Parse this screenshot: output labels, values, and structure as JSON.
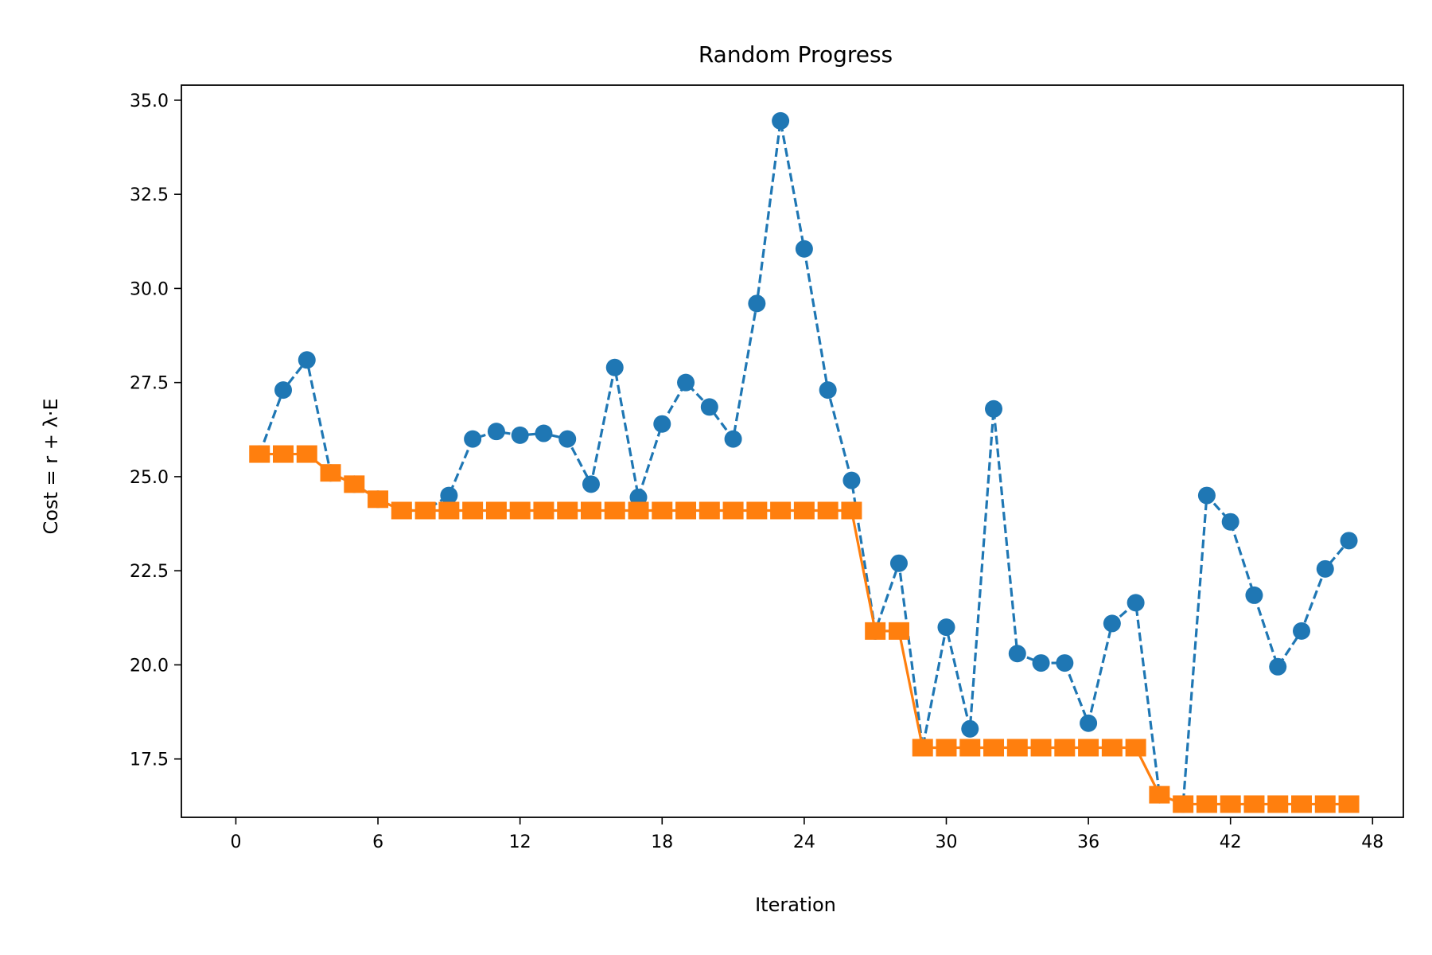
{
  "chart_data": {
    "type": "line",
    "title": "Random Progress",
    "xlabel": "Iteration",
    "ylabel": "Cost = r + λ·E",
    "xlim": [
      -2.3,
      49.3
    ],
    "ylim": [
      15.95,
      35.4
    ],
    "xticks": [
      0,
      6,
      12,
      18,
      24,
      30,
      36,
      42,
      48
    ],
    "yticks": [
      17.5,
      20.0,
      22.5,
      25.0,
      27.5,
      30.0,
      32.5,
      35.0
    ],
    "xtick_labels": [
      "0",
      "6",
      "12",
      "18",
      "24",
      "30",
      "36",
      "42",
      "48"
    ],
    "ytick_labels": [
      "17.5",
      "20.0",
      "22.5",
      "25.0",
      "27.5",
      "30.0",
      "32.5",
      "35.0"
    ],
    "grid": false,
    "series": [
      {
        "color": "#1f77b4",
        "line_style": "dashed",
        "marker": "circle",
        "x": [
          1,
          2,
          3,
          4,
          5,
          6,
          7,
          8,
          9,
          10,
          11,
          12,
          13,
          14,
          15,
          16,
          17,
          18,
          19,
          20,
          21,
          22,
          23,
          24,
          25,
          26,
          27,
          28,
          29,
          30,
          31,
          32,
          33,
          34,
          35,
          36,
          37,
          38,
          39,
          40,
          41,
          42,
          43,
          44,
          45,
          46,
          47
        ],
        "y": [
          25.6,
          27.3,
          28.1,
          25.1,
          24.8,
          24.4,
          24.1,
          24.1,
          24.5,
          26.0,
          26.2,
          26.1,
          26.15,
          26.0,
          24.8,
          27.9,
          24.45,
          26.4,
          27.5,
          26.85,
          26.0,
          29.6,
          34.45,
          31.05,
          27.3,
          24.9,
          20.9,
          22.7,
          17.8,
          21.0,
          18.3,
          26.8,
          20.3,
          20.05,
          20.05,
          18.45,
          21.1,
          21.65,
          16.55,
          16.3,
          24.5,
          23.8,
          21.85,
          19.95,
          20.9,
          22.55,
          23.3
        ]
      },
      {
        "color": "#ff7f0e",
        "line_style": "solid",
        "marker": "square",
        "x": [
          1,
          2,
          3,
          4,
          5,
          6,
          7,
          8,
          9,
          10,
          11,
          12,
          13,
          14,
          15,
          16,
          17,
          18,
          19,
          20,
          21,
          22,
          23,
          24,
          25,
          26,
          27,
          28,
          29,
          30,
          31,
          32,
          33,
          34,
          35,
          36,
          37,
          38,
          39,
          40,
          41,
          42,
          43,
          44,
          45,
          46,
          47
        ],
        "y": [
          25.6,
          25.6,
          25.6,
          25.1,
          24.8,
          24.4,
          24.1,
          24.1,
          24.1,
          24.1,
          24.1,
          24.1,
          24.1,
          24.1,
          24.1,
          24.1,
          24.1,
          24.1,
          24.1,
          24.1,
          24.1,
          24.1,
          24.1,
          24.1,
          24.1,
          24.1,
          20.9,
          20.9,
          17.8,
          17.8,
          17.8,
          17.8,
          17.8,
          17.8,
          17.8,
          17.8,
          17.8,
          17.8,
          16.55,
          16.3,
          16.3,
          16.3,
          16.3,
          16.3,
          16.3,
          16.3,
          16.3
        ]
      }
    ]
  }
}
